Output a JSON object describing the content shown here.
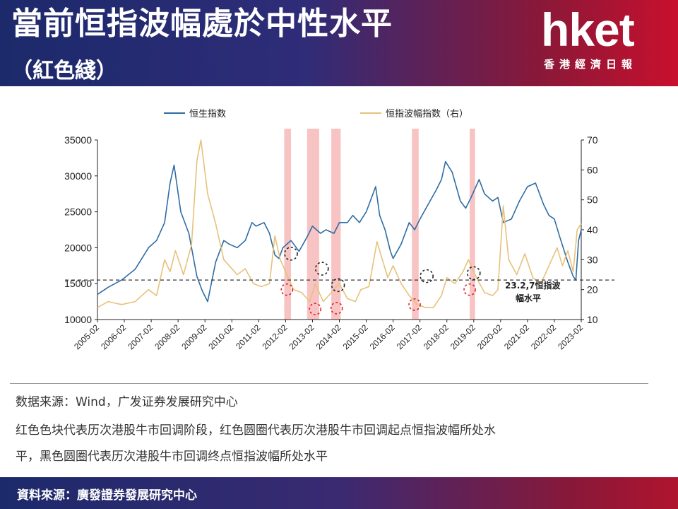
{
  "header": {
    "title": "當前恒指波幅處於中性水平",
    "subtitle": "（紅色綫）",
    "logo": "hket",
    "logo_sub": "香港經濟日報"
  },
  "chart_data": {
    "type": "line",
    "legend": [
      "恒生指数",
      "恒指波幅指数（右）"
    ],
    "legend_position": "top",
    "x_ticks": [
      "2005-02",
      "2006-02",
      "2007-02",
      "2008-02",
      "2009-02",
      "2010-02",
      "2011-02",
      "2012-02",
      "2013-02",
      "2014-02",
      "2015-02",
      "2016-02",
      "2017-02",
      "2018-02",
      "2019-02",
      "2020-02",
      "2021-02",
      "2022-02",
      "2023-02"
    ],
    "y_left": {
      "ticks": [
        "35000",
        "30000",
        "25000",
        "20000",
        "15000",
        "10000"
      ],
      "lim": [
        10000,
        35000
      ]
    },
    "y_right": {
      "ticks": [
        "70",
        "60",
        "50",
        "40",
        "30",
        "20",
        "10"
      ],
      "lim": [
        10,
        70
      ]
    },
    "series": [
      {
        "name": "恒生指数",
        "axis": "left",
        "color": "#2e6da4",
        "x": [
          2005.1,
          2005.5,
          2006.0,
          2006.5,
          2007.0,
          2007.3,
          2007.6,
          2007.8,
          2007.95,
          2008.2,
          2008.5,
          2008.8,
          2009.0,
          2009.2,
          2009.5,
          2009.8,
          2010.0,
          2010.3,
          2010.6,
          2010.85,
          2011.0,
          2011.3,
          2011.5,
          2011.7,
          2011.85,
          2012.0,
          2012.3,
          2012.6,
          2012.9,
          2013.1,
          2013.4,
          2013.6,
          2013.9,
          2014.1,
          2014.4,
          2014.6,
          2014.85,
          2015.1,
          2015.3,
          2015.45,
          2015.6,
          2015.8,
          2016.0,
          2016.1,
          2016.4,
          2016.7,
          2016.9,
          2017.1,
          2017.4,
          2017.7,
          2017.9,
          2018.05,
          2018.3,
          2018.6,
          2018.8,
          2019.0,
          2019.3,
          2019.5,
          2019.8,
          2020.0,
          2020.2,
          2020.5,
          2020.8,
          2021.1,
          2021.4,
          2021.7,
          2021.9,
          2022.1,
          2022.3,
          2022.6,
          2022.8,
          2022.9,
          2023.0,
          2023.1
        ],
        "y": [
          13500,
          14500,
          15500,
          17000,
          20000,
          21000,
          23500,
          29000,
          31500,
          25000,
          22000,
          16000,
          14000,
          12500,
          18000,
          21000,
          20500,
          20000,
          21000,
          23500,
          23000,
          23500,
          22000,
          19000,
          18500,
          20000,
          21000,
          19500,
          21500,
          23000,
          22000,
          22500,
          22000,
          23500,
          23500,
          24500,
          23500,
          25000,
          27000,
          28500,
          24500,
          22500,
          19500,
          18500,
          20500,
          23500,
          22500,
          24000,
          26000,
          28000,
          29500,
          32000,
          30500,
          26500,
          25500,
          27000,
          29500,
          27500,
          26500,
          27000,
          23500,
          24000,
          26500,
          28500,
          29000,
          26000,
          24500,
          24000,
          21500,
          18000,
          16000,
          15500,
          21000,
          22500
        ]
      },
      {
        "name": "恒指波幅指数（右）",
        "axis": "right",
        "color": "#e6c27a",
        "x": [
          2005.1,
          2005.5,
          2006.0,
          2006.5,
          2007.0,
          2007.3,
          2007.6,
          2007.8,
          2008.0,
          2008.3,
          2008.6,
          2008.8,
          2008.95,
          2009.2,
          2009.5,
          2009.8,
          2010.0,
          2010.3,
          2010.6,
          2010.9,
          2011.2,
          2011.5,
          2011.7,
          2011.9,
          2012.1,
          2012.4,
          2012.7,
          2013.0,
          2013.2,
          2013.5,
          2013.8,
          2014.1,
          2014.4,
          2014.7,
          2014.9,
          2015.2,
          2015.5,
          2015.7,
          2015.9,
          2016.1,
          2016.4,
          2016.7,
          2017.0,
          2017.3,
          2017.6,
          2017.9,
          2018.1,
          2018.4,
          2018.7,
          2018.9,
          2019.2,
          2019.5,
          2019.8,
          2020.0,
          2020.2,
          2020.4,
          2020.7,
          2021.0,
          2021.3,
          2021.6,
          2021.9,
          2022.2,
          2022.4,
          2022.6,
          2022.8,
          2022.95,
          2023.1
        ],
        "y": [
          14,
          16,
          15,
          16,
          20,
          18,
          30,
          26,
          33,
          25,
          35,
          63,
          70,
          52,
          42,
          30,
          28,
          25,
          27,
          22,
          21,
          22,
          38,
          30,
          26,
          20,
          19,
          16,
          22,
          16,
          19,
          22,
          17,
          16,
          20,
          21,
          36,
          30,
          24,
          28,
          22,
          18,
          15,
          14,
          14,
          18,
          24,
          22,
          26,
          30,
          24,
          19,
          18,
          20,
          48,
          30,
          25,
          32,
          24,
          22,
          28,
          34,
          28,
          33,
          26,
          40,
          42
        ]
      }
    ],
    "highlight_periods": [
      [
        2012.05,
        2012.3
      ],
      [
        2012.9,
        2013.35
      ],
      [
        2013.8,
        2014.15
      ],
      [
        2016.8,
        2017.05
      ],
      [
        2018.95,
        2019.15
      ]
    ],
    "red_circles": [
      {
        "x": 2012.15,
        "y": 20
      },
      {
        "x": 2013.2,
        "y": 13.5
      },
      {
        "x": 2014.0,
        "y": 13.8
      },
      {
        "x": 2016.9,
        "y": 15
      },
      {
        "x": 2018.95,
        "y": 20
      }
    ],
    "black_circles": [
      {
        "x": 2012.3,
        "y": 32
      },
      {
        "x": 2013.45,
        "y": 27
      },
      {
        "x": 2014.05,
        "y": 21.5
      },
      {
        "x": 2017.35,
        "y": 24.5
      },
      {
        "x": 2019.1,
        "y": 25.5
      }
    ],
    "reference_line": {
      "value": 23.2,
      "axis": "right",
      "label_line1": "23.2,7恒指波",
      "label_line2": "幅水平"
    }
  },
  "captions": [
    "数据来源：Wind，广发证券发展研究中心",
    "红色色块代表历次港股牛市回调阶段，红色圆圈代表历次港股牛市回调起点恒指波幅所处水",
    "平，黑色圆圈代表历次港股牛市回调终点恒指波幅所处水平"
  ],
  "footer": {
    "source": "資料來源：廣發證券發展研究中心"
  }
}
